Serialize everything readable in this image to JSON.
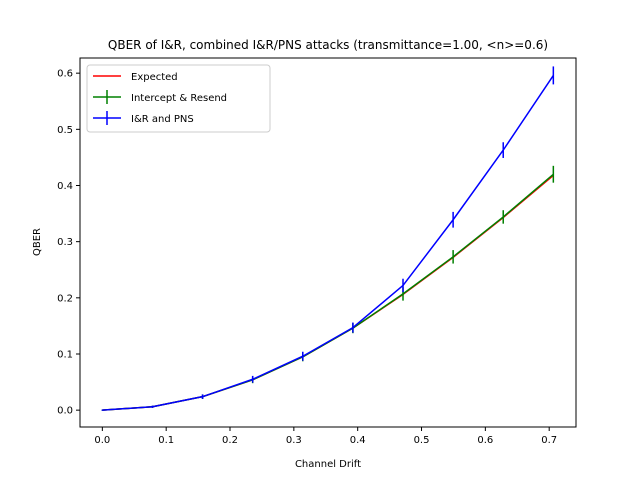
{
  "chart_data": {
    "type": "line",
    "title": "QBER of I&R, combined I&R/PNS attacks (transmittance=1.00, <n>=0.6)",
    "xlabel": "Channel Drift",
    "ylabel": "QBER",
    "xlim": [
      -0.035,
      0.742
    ],
    "ylim": [
      -0.03,
      0.627
    ],
    "xticks": [
      0.0,
      0.1,
      0.2,
      0.3,
      0.4,
      0.5,
      0.6,
      0.7
    ],
    "xtick_labels": [
      "0.0",
      "0.1",
      "0.2",
      "0.3",
      "0.4",
      "0.5",
      "0.6",
      "0.7"
    ],
    "yticks": [
      0.0,
      0.1,
      0.2,
      0.3,
      0.4,
      0.5,
      0.6
    ],
    "ytick_labels": [
      "0.0",
      "0.1",
      "0.2",
      "0.3",
      "0.4",
      "0.5",
      "0.6"
    ],
    "grid": false,
    "legend_position": "top-left",
    "x": [
      0.0,
      0.0785,
      0.157,
      0.2355,
      0.314,
      0.3925,
      0.471,
      0.5495,
      0.628,
      0.7065
    ],
    "series": [
      {
        "name": "Expected",
        "color": "#ff0000",
        "errorbars": false,
        "values": [
          0.0,
          0.006,
          0.024,
          0.054,
          0.095,
          0.146,
          0.206,
          0.272,
          0.343,
          0.418
        ]
      },
      {
        "name": "Intercept & Resend",
        "color": "#008000",
        "errorbars": true,
        "values": [
          0.0,
          0.006,
          0.024,
          0.054,
          0.095,
          0.146,
          0.207,
          0.273,
          0.344,
          0.42
        ],
        "errors": [
          0.001,
          0.002,
          0.004,
          0.006,
          0.008,
          0.009,
          0.012,
          0.012,
          0.012,
          0.015
        ]
      },
      {
        "name": "I&R and PNS",
        "color": "#0000ff",
        "errorbars": true,
        "values": [
          0.0,
          0.006,
          0.024,
          0.055,
          0.096,
          0.147,
          0.222,
          0.339,
          0.463,
          0.596
        ],
        "errors": [
          0.001,
          0.002,
          0.004,
          0.006,
          0.008,
          0.009,
          0.012,
          0.014,
          0.014,
          0.016
        ]
      }
    ]
  }
}
